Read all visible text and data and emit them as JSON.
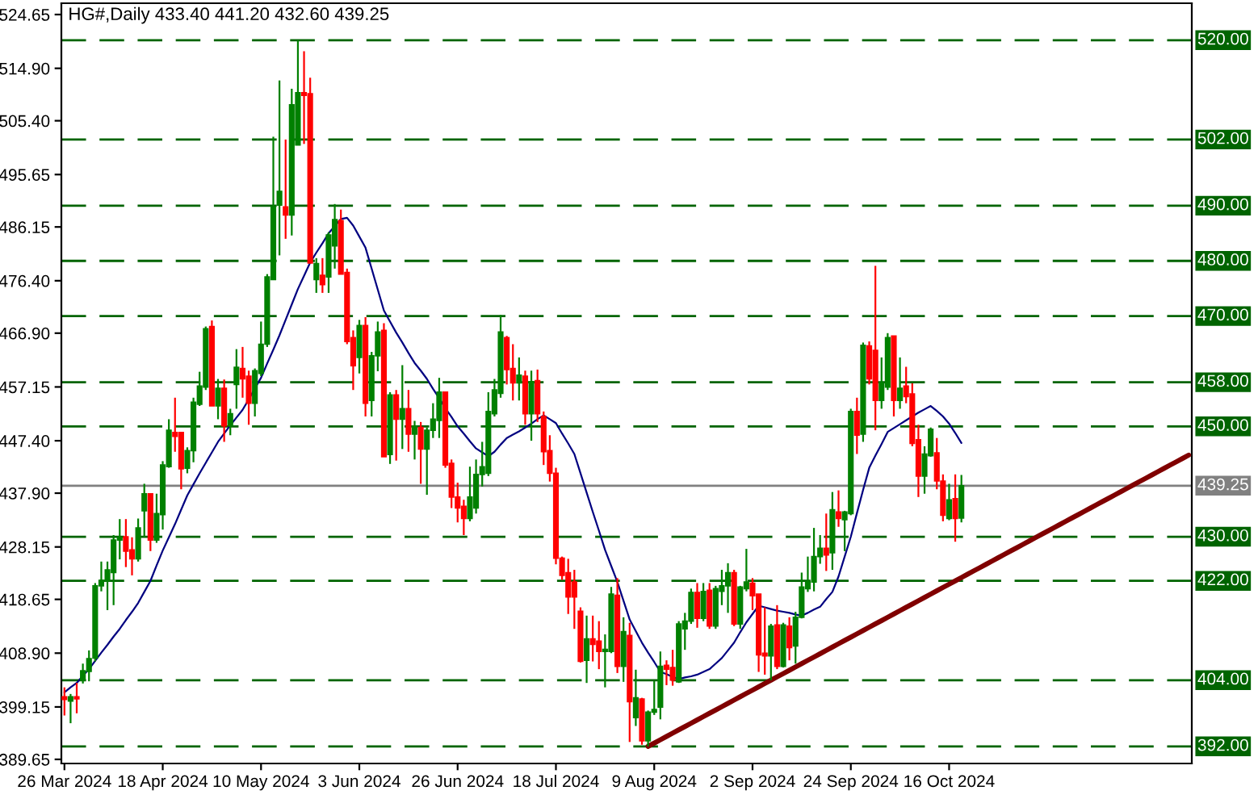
{
  "chart_data": {
    "type": "candlestick",
    "title": "HG#,Daily 433.40 441.20 432.60 439.25",
    "categories": [
      "26 Mar 2024",
      null,
      null,
      null,
      null,
      null,
      null,
      null,
      null,
      null,
      null,
      null,
      null,
      null,
      null,
      null,
      "18 Apr 2024",
      null,
      null,
      null,
      null,
      null,
      null,
      null,
      null,
      null,
      null,
      null,
      null,
      null,
      null,
      null,
      "10 May 2024",
      null,
      null,
      null,
      null,
      null,
      null,
      null,
      null,
      null,
      null,
      null,
      null,
      null,
      null,
      null,
      "3 Jun 2024",
      null,
      null,
      null,
      null,
      null,
      null,
      null,
      null,
      null,
      null,
      null,
      null,
      null,
      null,
      null,
      "26 Jun 2024",
      null,
      null,
      null,
      null,
      null,
      null,
      null,
      null,
      null,
      null,
      null,
      null,
      null,
      null,
      null,
      "18 Jul 2024",
      null,
      null,
      null,
      null,
      null,
      null,
      null,
      null,
      null,
      null,
      null,
      null,
      null,
      null,
      null,
      "9 Aug 2024",
      null,
      null,
      null,
      null,
      null,
      null,
      null,
      null,
      null,
      null,
      null,
      null,
      null,
      null,
      null,
      "2 Sep 2024",
      null,
      null,
      null,
      null,
      null,
      null,
      null,
      null,
      null,
      null,
      null,
      null,
      null,
      null,
      null,
      "24 Sep 2024",
      null,
      null,
      null,
      null,
      null,
      null,
      null,
      null,
      null,
      null,
      null,
      null,
      null,
      null,
      null,
      "16 Oct 2024",
      null,
      null,
      null,
      null,
      null,
      null,
      null,
      null,
      null,
      null,
      null,
      null,
      null,
      null,
      null,
      null,
      null,
      null,
      null,
      null,
      null,
      null,
      null,
      null,
      null,
      null,
      null,
      null,
      null,
      null,
      null,
      null,
      null,
      null,
      null,
      null,
      null,
      null,
      null
    ],
    "ohlc": [
      [
        401.0,
        402.7,
        397.6,
        400.5
      ],
      [
        400.2,
        401.5,
        396.2,
        401.0
      ],
      [
        401.0,
        403.5,
        398.0,
        400.6
      ],
      [
        404.0,
        407.0,
        403.4,
        405.7
      ],
      [
        405.6,
        409.4,
        403.8,
        407.9
      ],
      [
        408.0,
        421.6,
        407.4,
        421.1
      ],
      [
        421.1,
        425.5,
        420.1,
        422.1
      ],
      [
        422.0,
        425.5,
        416.7,
        424.0
      ],
      [
        423.5,
        430.3,
        417.6,
        429.4
      ],
      [
        429.4,
        433.2,
        425.9,
        429.9
      ],
      [
        430.0,
        433.2,
        424.5,
        427.4
      ],
      [
        427.6,
        429.9,
        423.0,
        426.0
      ],
      [
        426.0,
        433.3,
        425.5,
        431.6
      ],
      [
        434.7,
        439.6,
        429.9,
        437.8
      ],
      [
        437.8,
        437.8,
        427.4,
        429.4
      ],
      [
        429.4,
        437.8,
        428.9,
        434.2
      ],
      [
        434.0,
        443.7,
        431.3,
        443.0
      ],
      [
        442.7,
        451.3,
        442.5,
        449.3
      ],
      [
        448.9,
        455.2,
        445.4,
        448.2
      ],
      [
        448.9,
        448.9,
        438.6,
        442.3
      ],
      [
        442.4,
        446.2,
        441.5,
        445.6
      ],
      [
        445.6,
        455.2,
        443.5,
        454.4
      ],
      [
        454.0,
        459.9,
        453.7,
        457.3
      ],
      [
        457.1,
        468.1,
        456.6,
        467.7
      ],
      [
        468.1,
        469.2,
        453.7,
        453.7
      ],
      [
        453.7,
        458.6,
        451.3,
        456.9
      ],
      [
        456.9,
        458.5,
        447.2,
        450.1
      ],
      [
        450.1,
        453.2,
        448.4,
        452.3
      ],
      [
        457.6,
        464.0,
        453.2,
        460.7
      ],
      [
        460.5,
        464.4,
        455.2,
        458.6
      ],
      [
        459.1,
        460.1,
        450.3,
        454.2
      ],
      [
        454.2,
        460.5,
        451.8,
        460.1
      ],
      [
        459.6,
        469.0,
        459.1,
        464.9
      ],
      [
        464.9,
        477.6,
        464.4,
        477.1
      ],
      [
        476.6,
        502.5,
        476.6,
        489.8
      ],
      [
        490.1,
        512.7,
        481.0,
        492.6
      ],
      [
        489.8,
        502.0,
        484.0,
        488.3
      ],
      [
        488.3,
        511.2,
        484.6,
        508.3
      ],
      [
        501.0,
        520.0,
        501.0,
        510.5
      ],
      [
        510.5,
        518.0,
        501.2,
        510.0
      ],
      [
        510.3,
        513.2,
        479.6,
        479.6
      ],
      [
        476.6,
        480.5,
        474.2,
        479.5
      ],
      [
        477.4,
        480.5,
        474.2,
        475.7
      ],
      [
        477.1,
        485.2,
        474.2,
        484.7
      ],
      [
        482.7,
        490.3,
        478.6,
        487.5
      ],
      [
        487.3,
        489.3,
        477.6,
        477.6
      ],
      [
        477.9,
        478.6,
        464.9,
        465.4
      ],
      [
        466.1,
        467.4,
        456.6,
        461.0
      ],
      [
        462.5,
        469.3,
        459.6,
        468.3
      ],
      [
        468.3,
        469.8,
        451.8,
        454.2
      ],
      [
        454.7,
        463.5,
        451.8,
        462.8
      ],
      [
        462.8,
        469.0,
        460.0,
        467.1
      ],
      [
        467.4,
        468.7,
        444.5,
        444.5
      ],
      [
        444.9,
        456.2,
        443.2,
        455.7
      ],
      [
        455.7,
        456.6,
        443.8,
        451.3
      ],
      [
        451.3,
        461.1,
        445.9,
        453.2
      ],
      [
        453.2,
        456.6,
        445.4,
        448.6
      ],
      [
        448.6,
        451.0,
        444.0,
        450.0
      ],
      [
        449.8,
        450.8,
        439.6,
        445.9
      ],
      [
        445.9,
        449.8,
        437.6,
        449.3
      ],
      [
        449.3,
        454.2,
        447.9,
        451.3
      ],
      [
        451.1,
        458.8,
        447.9,
        456.2
      ],
      [
        456.2,
        456.2,
        442.5,
        443.0
      ],
      [
        443.3,
        444.0,
        435.2,
        437.2
      ],
      [
        437.2,
        439.8,
        432.6,
        435.2
      ],
      [
        435.5,
        436.7,
        430.3,
        433.3
      ],
      [
        433.3,
        442.7,
        432.8,
        437.2
      ],
      [
        435.2,
        444.0,
        434.2,
        441.3
      ],
      [
        441.3,
        447.2,
        439.1,
        442.7
      ],
      [
        441.5,
        456.2,
        441.0,
        452.7
      ],
      [
        452.3,
        458.6,
        451.8,
        456.6
      ],
      [
        456.0,
        470.2,
        455.2,
        467.1
      ],
      [
        466.1,
        466.4,
        457.6,
        460.3
      ],
      [
        460.5,
        464.9,
        454.7,
        457.9
      ],
      [
        457.9,
        462.5,
        454.7,
        459.3
      ],
      [
        459.1,
        460.1,
        450.3,
        452.3
      ],
      [
        452.3,
        460.1,
        447.4,
        458.1
      ],
      [
        458.3,
        460.3,
        450.8,
        452.3
      ],
      [
        451.8,
        452.7,
        443.0,
        445.4
      ],
      [
        445.6,
        448.4,
        440.0,
        441.5
      ],
      [
        441.5,
        442.5,
        425.0,
        426.1
      ],
      [
        426.1,
        426.4,
        422.2,
        423.0
      ],
      [
        423.5,
        426.0,
        416.0,
        419.1
      ],
      [
        421.8,
        424.0,
        413.3,
        419.1
      ],
      [
        416.5,
        417.2,
        407.2,
        407.4
      ],
      [
        407.6,
        415.7,
        403.5,
        411.5
      ],
      [
        411.5,
        415.7,
        407.4,
        410.5
      ],
      [
        411.1,
        414.7,
        406.0,
        409.2
      ],
      [
        409.2,
        412.3,
        402.7,
        409.6
      ],
      [
        409.2,
        420.9,
        408.9,
        419.6
      ],
      [
        419.4,
        422.5,
        405.3,
        406.5
      ],
      [
        406.5,
        415.4,
        403.7,
        412.8
      ],
      [
        412.1,
        414.4,
        392.8,
        400.1
      ],
      [
        397.2,
        405.9,
        395.7,
        400.8
      ],
      [
        400.6,
        400.8,
        392.3,
        393.0
      ],
      [
        393.0,
        398.5,
        392.0,
        398.2
      ],
      [
        398.2,
        403.9,
        397.7,
        398.7
      ],
      [
        399.1,
        409.2,
        396.9,
        406.5
      ],
      [
        406.7,
        407.6,
        403.1,
        406.0
      ],
      [
        406.3,
        409.5,
        403.0,
        404.0
      ],
      [
        403.7,
        414.7,
        403.5,
        414.2
      ],
      [
        413.3,
        416.2,
        409.5,
        414.7
      ],
      [
        414.7,
        420.6,
        414.2,
        419.9
      ],
      [
        419.9,
        421.6,
        413.5,
        415.2
      ],
      [
        415.2,
        421.6,
        414.7,
        420.1
      ],
      [
        420.3,
        421.6,
        413.3,
        413.8
      ],
      [
        413.8,
        421.1,
        413.3,
        420.6
      ],
      [
        420.1,
        424.0,
        417.6,
        421.1
      ],
      [
        421.1,
        425.2,
        416.2,
        423.5
      ],
      [
        423.5,
        424.0,
        413.8,
        414.2
      ],
      [
        414.2,
        421.1,
        413.3,
        420.9
      ],
      [
        420.6,
        427.8,
        420.1,
        421.8
      ],
      [
        421.6,
        422.5,
        416.7,
        419.3
      ],
      [
        419.6,
        419.6,
        405.5,
        408.6
      ],
      [
        408.9,
        417.2,
        405.0,
        408.4
      ],
      [
        408.4,
        414.2,
        404.0,
        413.8
      ],
      [
        414.0,
        417.6,
        406.0,
        406.5
      ],
      [
        406.5,
        414.4,
        406.3,
        414.0
      ],
      [
        413.8,
        415.4,
        407.6,
        409.9
      ],
      [
        410.2,
        416.4,
        407.0,
        415.4
      ],
      [
        415.4,
        423.5,
        415.2,
        420.9
      ],
      [
        420.6,
        426.4,
        420.0,
        421.8
      ],
      [
        421.8,
        431.6,
        420.1,
        426.4
      ],
      [
        426.4,
        430.3,
        425.1,
        427.9
      ],
      [
        427.9,
        434.2,
        423.8,
        426.7
      ],
      [
        427.1,
        438.1,
        424.0,
        434.9
      ],
      [
        434.5,
        438.4,
        431.8,
        433.3
      ],
      [
        433.1,
        434.7,
        427.4,
        434.5
      ],
      [
        434.2,
        453.2,
        433.9,
        452.7
      ],
      [
        452.7,
        455.2,
        445.0,
        448.4
      ],
      [
        448.6,
        465.2,
        447.2,
        464.7
      ],
      [
        464.6,
        465.4,
        457.6,
        458.6
      ],
      [
        463.8,
        479.1,
        449.3,
        454.7
      ],
      [
        454.7,
        462.5,
        453.2,
        457.9
      ],
      [
        457.1,
        466.9,
        456.6,
        466.1
      ],
      [
        466.4,
        466.4,
        451.8,
        454.7
      ],
      [
        454.7,
        462.5,
        453.2,
        456.9
      ],
      [
        457.3,
        460.8,
        454.2,
        455.4
      ],
      [
        455.9,
        457.8,
        446.4,
        446.9
      ],
      [
        447.6,
        450.3,
        437.2,
        441.0
      ],
      [
        441.0,
        446.4,
        437.8,
        445.0
      ],
      [
        444.7,
        449.8,
        444.5,
        449.5
      ],
      [
        445.2,
        447.9,
        438.6,
        440.1
      ],
      [
        440.1,
        441.3,
        432.8,
        433.9
      ],
      [
        433.3,
        439.6,
        433.0,
        436.7
      ],
      [
        436.9,
        441.3,
        429.1,
        433.3
      ],
      [
        433.4,
        441.2,
        432.6,
        439.25
      ],
      null,
      null,
      null,
      null,
      null,
      null,
      null,
      null,
      null,
      null,
      null,
      null,
      null,
      null,
      null,
      null,
      null,
      null,
      null,
      null,
      null,
      null,
      null,
      null,
      null,
      null,
      null,
      null,
      null,
      null,
      null,
      null,
      null,
      null,
      null,
      null,
      null
    ],
    "colors": [
      "#ff0000",
      "#008000",
      "#ff0000",
      "#008000",
      "#008000",
      "#008000",
      "#008000",
      "#008000",
      "#008000",
      "#008000",
      "#ff0000",
      "#ff0000",
      "#008000",
      "#008000",
      "#ff0000",
      "#008000",
      "#008000",
      "#008000",
      "#ff0000",
      "#ff0000",
      "#008000",
      "#008000",
      "#008000",
      "#008000",
      "#ff0000",
      "#008000",
      "#ff0000",
      "#008000",
      "#008000",
      "#ff0000",
      "#ff0000",
      "#008000",
      "#008000",
      "#008000",
      "#008000",
      "#008000",
      "#ff0000",
      "#008000",
      "#008000",
      "#ff0000",
      "#ff0000",
      "#008000",
      "#ff0000",
      "#008000",
      "#008000",
      "#ff0000",
      "#ff0000",
      "#ff0000",
      "#008000",
      "#ff0000",
      "#008000",
      "#008000",
      "#ff0000",
      "#008000",
      "#ff0000",
      "#008000",
      "#ff0000",
      "#008000",
      "#ff0000",
      "#008000",
      "#008000",
      "#008000",
      "#ff0000",
      "#ff0000",
      "#ff0000",
      "#ff0000",
      "#008000",
      "#008000",
      "#008000",
      "#008000",
      "#008000",
      "#008000",
      "#ff0000",
      "#ff0000",
      "#008000",
      "#ff0000",
      "#008000",
      "#ff0000",
      "#ff0000",
      "#ff0000",
      "#ff0000",
      "#ff0000",
      "#ff0000",
      "#ff0000",
      "#ff0000",
      "#008000",
      "#ff0000",
      "#ff0000",
      "#008000",
      "#008000",
      "#ff0000",
      "#008000",
      "#ff0000",
      "#008000",
      "#ff0000",
      "#008000",
      "#008000",
      "#008000",
      "#ff0000",
      "#ff0000",
      "#008000",
      "#008000",
      "#008000",
      "#ff0000",
      "#008000",
      "#ff0000",
      "#008000",
      "#008000",
      "#008000",
      "#ff0000",
      "#008000",
      "#008000",
      "#ff0000",
      "#ff0000",
      "#ff0000",
      "#008000",
      "#ff0000",
      "#008000",
      "#ff0000",
      "#008000",
      "#008000",
      "#008000",
      "#008000",
      "#008000",
      "#ff0000",
      "#008000",
      "#ff0000",
      "#008000",
      "#008000",
      "#ff0000",
      "#008000",
      "#ff0000",
      "#ff0000",
      "#008000",
      "#008000",
      "#ff0000",
      "#008000",
      "#ff0000",
      "#ff0000",
      "#ff0000",
      "#008000",
      "#008000",
      "#ff0000",
      "#ff0000",
      "#008000",
      "#ff0000",
      "#008000",
      null,
      null,
      null,
      null,
      null,
      null,
      null,
      null,
      null,
      null,
      null,
      null,
      null,
      null,
      null,
      null,
      null,
      null,
      null,
      null,
      null,
      null,
      null,
      null,
      null,
      null,
      null,
      null,
      null,
      null,
      null,
      null,
      null,
      null,
      null,
      null,
      null
    ],
    "series": [
      {
        "type": "line",
        "color": "#000080",
        "values": [
          401.8,
          402.7,
          403.5,
          404.8,
          406.0,
          407.5,
          409.0,
          410.4,
          411.9,
          413.3,
          414.9,
          416.4,
          418.0,
          420.0,
          422.0,
          424.8,
          427.5,
          429.9,
          432.3,
          434.9,
          437.5,
          439.5,
          441.5,
          443.4,
          445.3,
          447.2,
          448.7,
          450.2,
          451.6,
          453.0,
          454.9,
          456.9,
          458.8,
          461.4,
          463.9,
          466.5,
          469.3,
          472.1,
          474.9,
          477.3,
          479.7,
          481.5,
          483.2,
          485.0,
          486.3,
          487.6,
          487.8,
          486.4,
          484.4,
          482.4,
          478.6,
          474.8,
          471.0,
          469.0,
          467.0,
          465.2,
          463.3,
          461.5,
          460.1,
          458.6,
          456.8,
          455.1,
          453.3,
          451.7,
          450.0,
          448.7,
          447.3,
          446.0,
          445.3,
          444.6,
          445.4,
          446.7,
          447.9,
          448.5,
          449.1,
          449.8,
          450.5,
          451.3,
          452.0,
          451.3,
          450.6,
          448.7,
          446.9,
          445.0,
          441.5,
          438.0,
          434.5,
          431.1,
          427.6,
          424.7,
          421.8,
          418.4,
          415.0,
          412.9,
          410.8,
          409.0,
          407.3,
          405.5,
          405.1,
          404.6,
          404.2,
          404.5,
          404.7,
          405.0,
          405.5,
          406.0,
          407.0,
          408.0,
          409.4,
          410.8,
          412.7,
          414.5,
          416.0,
          417.5,
          417.2,
          416.9,
          416.6,
          416.4,
          416.2,
          415.9,
          415.7,
          416.2,
          416.8,
          417.3,
          418.7,
          420.0,
          422.8,
          426.4,
          430.0,
          434.3,
          438.5,
          442.5,
          444.7,
          446.8,
          449.0,
          449.7,
          450.4,
          451.1,
          451.8,
          452.5,
          453.1,
          453.7,
          452.8,
          451.8,
          450.5,
          448.8,
          447.0,
          null,
          null,
          null,
          null,
          null,
          null,
          null,
          null,
          null,
          null,
          null,
          null,
          null,
          null,
          null,
          null,
          null,
          null,
          null,
          null,
          null,
          null,
          null,
          null,
          null,
          null,
          null,
          null,
          null,
          null,
          null,
          null,
          null,
          null,
          null,
          null,
          null
        ]
      },
      {
        "type": "line",
        "color": "#800000",
        "values": [
          null,
          null,
          null,
          null,
          null,
          null,
          null,
          null,
          null,
          null,
          null,
          null,
          null,
          null,
          null,
          null,
          null,
          null,
          null,
          null,
          null,
          null,
          null,
          null,
          null,
          null,
          null,
          null,
          null,
          null,
          null,
          null,
          null,
          null,
          null,
          null,
          null,
          null,
          null,
          null,
          null,
          null,
          null,
          null,
          null,
          null,
          null,
          null,
          null,
          null,
          null,
          null,
          null,
          null,
          null,
          null,
          null,
          null,
          null,
          null,
          null,
          null,
          null,
          null,
          null,
          null,
          null,
          null,
          null,
          null,
          null,
          null,
          null,
          null,
          null,
          null,
          null,
          null,
          null,
          null,
          null,
          null,
          null,
          null,
          null,
          null,
          null,
          null,
          null,
          null,
          null,
          null,
          null,
          null,
          null,
          392.0,
          392.6,
          393.2,
          393.8,
          394.4,
          395.0,
          395.6,
          396.2,
          396.8,
          397.4,
          398.0,
          398.6,
          399.2,
          399.8,
          400.4,
          401.0,
          401.6,
          402.2,
          402.8,
          403.4,
          404.0,
          404.6,
          405.2,
          405.8,
          406.4,
          407.0,
          407.6,
          408.2,
          408.8,
          409.4,
          410.0,
          410.6,
          411.2,
          411.8,
          412.4,
          413.0,
          413.6,
          414.2,
          414.8,
          415.4,
          416.0,
          416.6,
          417.2,
          417.8,
          418.4,
          419.0,
          419.6,
          420.2,
          420.8,
          421.4,
          422.0,
          422.6,
          423.2,
          423.8,
          424.4,
          425.0,
          425.6,
          426.2,
          426.8,
          427.4,
          428.0,
          428.6,
          429.2,
          429.8,
          430.4,
          431.0,
          431.6,
          432.2,
          432.8,
          433.4,
          434.0,
          434.6,
          435.2,
          435.8,
          436.4,
          437.0,
          437.6,
          438.2,
          438.8,
          439.4,
          440.0,
          440.6,
          441.2,
          441.8,
          442.4,
          443.0,
          443.6,
          444.2,
          444.8
        ]
      }
    ],
    "ylim": [
      388.9,
      526.7
    ],
    "yticks": [
      524.65,
      {
        "value": 514.9,
        "label": "514.90"
      },
      {
        "value": 505.4,
        "label": "505.40"
      },
      495.65,
      486.15,
      {
        "value": 476.4,
        "label": "476.40"
      },
      {
        "value": 466.9,
        "label": "466.90"
      },
      457.15,
      {
        "value": 447.4,
        "label": "447.40"
      },
      {
        "value": 437.9,
        "label": "437.90"
      },
      428.15,
      418.65,
      {
        "value": 408.9,
        "label": "408.90"
      },
      399.15,
      389.65
    ],
    "ref_lines": [
      {
        "axis": "y",
        "value": 520,
        "label": "520.00",
        "color": "#006400",
        "line_style": "dashed"
      },
      {
        "axis": "y",
        "value": 502,
        "label": "502.00",
        "color": "#006400",
        "line_style": "dashed"
      },
      {
        "axis": "y",
        "value": 490,
        "label": "490.00",
        "color": "#006400",
        "line_style": "dashed"
      },
      {
        "axis": "y",
        "value": 480,
        "label": "480.00",
        "color": "#006400",
        "line_style": "dashed"
      },
      {
        "axis": "y",
        "value": 470,
        "label": "470.00",
        "color": "#006400",
        "line_style": "dashed"
      },
      {
        "axis": "y",
        "value": 458,
        "label": "458.00",
        "color": "#006400",
        "line_style": "dashed"
      },
      {
        "axis": "y",
        "value": 450,
        "label": "450.00",
        "color": "#006400",
        "line_style": "dashed"
      },
      {
        "axis": "y",
        "value": 439.25,
        "label": "439.25",
        "color": "#808080",
        "line_style": "solid"
      },
      {
        "axis": "y",
        "value": 430,
        "label": "430.00",
        "color": "#006400",
        "line_style": "dashed"
      },
      {
        "axis": "y",
        "value": 422,
        "label": "422.00",
        "color": "#006400",
        "line_style": "dashed"
      },
      {
        "axis": "y",
        "value": 404,
        "label": "404.00",
        "color": "#006400",
        "line_style": "dashed"
      },
      {
        "axis": "y",
        "value": 392,
        "label": "392.00",
        "color": "#006400",
        "line_style": "dashed"
      }
    ]
  }
}
